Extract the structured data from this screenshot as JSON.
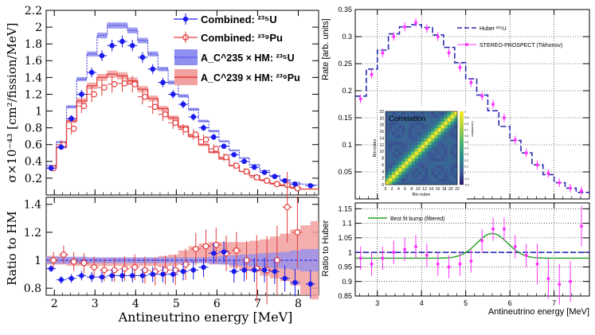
{
  "chart_data": [
    {
      "type": "step-histogram",
      "panel": "left-top",
      "ylabel": "σ×10⁻⁴³ [cm²/fission/MeV]",
      "xlim": [
        1.8,
        8.5
      ],
      "ylim": [
        0,
        2.2
      ],
      "x_ticks": [
        2,
        3,
        4,
        5,
        6,
        7,
        8
      ],
      "y_ticks": [
        0.2,
        0.4,
        0.6,
        0.8,
        1,
        1.2,
        1.4,
        1.6,
        1.8,
        2,
        2.2
      ],
      "bin_edges": [
        1.8,
        2.05,
        2.3,
        2.55,
        2.8,
        3.05,
        3.3,
        3.55,
        3.8,
        4.05,
        4.3,
        4.55,
        4.8,
        5.05,
        5.3,
        5.55,
        5.8,
        6.05,
        6.3,
        6.55,
        6.8,
        7.05,
        7.3,
        7.55,
        7.8,
        8.05,
        8.3,
        8.5
      ],
      "series": [
        {
          "name": "A_C^235 × HM: 235U",
          "color": "#3b3bd6",
          "values": [
            0.35,
            0.63,
            1.05,
            1.38,
            1.68,
            1.9,
            2.02,
            2.02,
            1.96,
            1.84,
            1.68,
            1.5,
            1.34,
            1.18,
            1.02,
            0.88,
            0.76,
            0.64,
            0.53,
            0.44,
            0.36,
            0.29,
            0.23,
            0.18,
            0.15,
            0.13,
            0.12
          ]
        },
        {
          "name": "A_C^239 × HM: 239Pu",
          "color": "#e23b3b",
          "values": [
            0.32,
            0.57,
            0.88,
            1.12,
            1.3,
            1.4,
            1.44,
            1.42,
            1.36,
            1.26,
            1.15,
            1.03,
            0.92,
            0.81,
            0.7,
            0.6,
            0.51,
            0.43,
            0.35,
            0.28,
            0.23,
            0.18,
            0.14,
            0.11,
            0.09,
            0.07,
            0.07
          ]
        },
        {
          "name": "Combined: 235U",
          "color": "#1a1aee",
          "x": [
            1.92,
            2.17,
            2.42,
            2.67,
            2.92,
            3.17,
            3.42,
            3.67,
            3.92,
            4.17,
            4.42,
            4.67,
            4.92,
            5.17,
            5.42,
            5.67,
            5.92,
            6.17,
            6.42,
            6.67,
            6.92,
            7.17,
            7.42,
            7.67,
            7.92,
            8.3
          ],
          "values": [
            0.32,
            0.57,
            0.91,
            1.2,
            1.46,
            1.66,
            1.78,
            1.83,
            1.78,
            1.64,
            1.5,
            1.34,
            1.2,
            1.08,
            0.93,
            0.8,
            0.69,
            0.58,
            0.48,
            0.4,
            0.33,
            0.27,
            0.22,
            0.17,
            0.13,
            0.11
          ]
        },
        {
          "name": "Combined: 239Pu",
          "color": "#e23b3b",
          "x": [
            1.92,
            2.17,
            2.42,
            2.67,
            2.92,
            3.17,
            3.42,
            3.67,
            3.92,
            4.17,
            4.42,
            4.67,
            4.92,
            5.17,
            5.42,
            5.67,
            5.92,
            6.17,
            6.42,
            6.67,
            6.92,
            7.17,
            7.42,
            7.67,
            7.92
          ],
          "values": [
            0.32,
            0.6,
            0.79,
            1.06,
            1.2,
            1.28,
            1.32,
            1.33,
            1.32,
            1.17,
            1.05,
            0.96,
            0.86,
            0.78,
            0.72,
            0.66,
            0.55,
            0.45,
            0.35,
            0.28,
            0.21,
            0.17,
            0.13,
            0.12,
            0.08
          ]
        }
      ]
    },
    {
      "type": "ratio",
      "panel": "left-bottom",
      "xlabel": "Antineutrino energy [MeV]",
      "ylabel": "Ratio to HM",
      "xlim": [
        1.8,
        8.5
      ],
      "ylim": [
        0.75,
        1.45
      ],
      "x_ticks": [
        2,
        3,
        4,
        5,
        6,
        7,
        8
      ],
      "y_ticks": [
        0.8,
        1,
        1.2,
        1.4
      ],
      "ratio_235": {
        "x": [
          1.92,
          2.17,
          2.42,
          2.67,
          2.92,
          3.17,
          3.42,
          3.67,
          3.92,
          4.17,
          4.42,
          4.67,
          4.92,
          5.17,
          5.42,
          5.67,
          5.92,
          6.17,
          6.42,
          6.67,
          6.92,
          7.17,
          7.42,
          7.67,
          7.92,
          8.3
        ],
        "values": [
          0.94,
          0.86,
          0.87,
          0.89,
          0.88,
          0.88,
          0.89,
          0.89,
          0.89,
          0.89,
          0.9,
          0.9,
          0.9,
          0.92,
          0.93,
          0.95,
          1.05,
          1.06,
          0.92,
          0.93,
          0.93,
          0.93,
          0.92,
          0.87,
          0.84,
          0.83
        ]
      },
      "ratio_239": {
        "x": [
          1.92,
          2.17,
          2.42,
          2.67,
          2.92,
          3.17,
          3.42,
          3.67,
          3.92,
          4.17,
          4.42,
          4.67,
          4.92,
          5.17,
          5.42,
          5.67,
          5.92,
          6.17,
          6.42,
          6.67,
          6.92,
          7.17,
          7.42,
          7.67,
          7.92
        ],
        "values": [
          1.0,
          1.04,
          0.99,
          0.98,
          0.95,
          0.93,
          0.93,
          0.94,
          0.95,
          0.93,
          0.92,
          0.93,
          0.93,
          0.97,
          1.08,
          1.1,
          1.11,
          1.05,
          1.07,
          1.0,
          0.94,
          0.93,
          1.0,
          1.38,
          1.2
        ]
      }
    },
    {
      "type": "step-histogram",
      "panel": "right-top",
      "ylabel": "Rate [arb. units]",
      "xlim": [
        2.5,
        7.8
      ],
      "ylim": [
        0,
        0.35
      ],
      "x_ticks": [
        3,
        4,
        5,
        6,
        7
      ],
      "y_ticks": [
        0.05,
        0.1,
        0.15,
        0.2,
        0.25,
        0.3,
        0.35
      ],
      "bin_edges": [
        2.5,
        2.75,
        3.0,
        3.25,
        3.5,
        3.75,
        4.0,
        4.25,
        4.5,
        4.75,
        5.0,
        5.25,
        5.5,
        5.75,
        6.0,
        6.25,
        6.5,
        6.75,
        7.0,
        7.25,
        7.5,
        7.8
      ],
      "huber": [
        0.19,
        0.24,
        0.275,
        0.305,
        0.318,
        0.322,
        0.317,
        0.303,
        0.28,
        0.252,
        0.222,
        0.192,
        0.163,
        0.134,
        0.108,
        0.085,
        0.063,
        0.045,
        0.03,
        0.02,
        0.012
      ],
      "stereo_prospect": {
        "x": [
          2.62,
          2.87,
          3.12,
          3.37,
          3.62,
          3.87,
          4.12,
          4.37,
          4.62,
          4.87,
          5.12,
          5.37,
          5.62,
          5.87,
          6.12,
          6.37,
          6.62,
          6.87,
          7.12,
          7.37,
          7.62
        ],
        "values": [
          0.185,
          0.23,
          0.27,
          0.3,
          0.318,
          0.326,
          0.315,
          0.3,
          0.27,
          0.243,
          0.215,
          0.19,
          0.175,
          0.15,
          0.109,
          0.085,
          0.063,
          0.047,
          0.03,
          0.02,
          0.015
        ]
      }
    },
    {
      "type": "ratio",
      "panel": "right-bottom",
      "xlabel": "Antineutrino energy [MeV]",
      "ylabel": "Ratio to Huber",
      "xlim": [
        2.5,
        7.8
      ],
      "ylim": [
        0.85,
        1.17
      ],
      "x_ticks": [
        3,
        4,
        5,
        6,
        7
      ],
      "y_ticks": [
        0.85,
        0.9,
        0.95,
        1,
        1.05,
        1.1,
        1.15
      ],
      "points": {
        "x": [
          2.62,
          2.87,
          3.12,
          3.37,
          3.62,
          3.87,
          4.12,
          4.37,
          4.62,
          4.87,
          5.12,
          5.37,
          5.62,
          5.87,
          6.12,
          6.37,
          6.62,
          6.87,
          7.12,
          7.37,
          7.62
        ],
        "values": [
          0.98,
          0.96,
          0.98,
          1.0,
          1.01,
          1.02,
          0.99,
          0.96,
          0.95,
          0.96,
          0.97,
          1.04,
          1.08,
          1.08,
          1.02,
          0.99,
          0.96,
          0.91,
          0.89,
          0.9,
          1.09
        ]
      },
      "best_fit_bump": {
        "center": 5.6,
        "amplitude": 0.085,
        "sigma": 0.35,
        "baseline": 0.98
      }
    },
    {
      "type": "heatmap",
      "panel": "inset",
      "title": "Correlation",
      "xlabel": "Bin index",
      "ylabel": "Bin index",
      "x_ticks": [
        0,
        2,
        4,
        6,
        8,
        10,
        12,
        14,
        16,
        18,
        20,
        22
      ],
      "y_ticks": [
        0,
        2,
        4,
        6,
        8,
        10,
        12,
        14,
        16,
        18,
        20,
        22
      ],
      "colorbar_ticks": [
        -0.2,
        -0.1,
        0,
        0.1,
        0.2,
        0.3,
        0.4,
        0.5,
        0.6,
        0.7,
        0.8,
        0.9,
        1
      ],
      "colorbar_label": "Correlation"
    }
  ],
  "labels": {
    "left_legend": {
      "combined_235": "Combined: ²³⁵U",
      "combined_239": "Combined: ²³⁹Pu",
      "ac235": "A_C^235 × HM: ²³⁵U",
      "ac239": "A_C^239 × HM: ²³⁹Pu"
    },
    "right_legend": {
      "huber": "Huber ²³⁵U",
      "stereo": "STEREO-PROSPECT (Tikhonov)",
      "bump": "Best fit bump (filtered)"
    }
  },
  "colors": {
    "blue": "#1a1aee",
    "blue_band": "#8f8ff0",
    "red": "#e23b3b",
    "red_band": "#f2a0a0",
    "magenta": "#ff33ff",
    "green": "#22a022",
    "huber": "#2a2ab0"
  }
}
